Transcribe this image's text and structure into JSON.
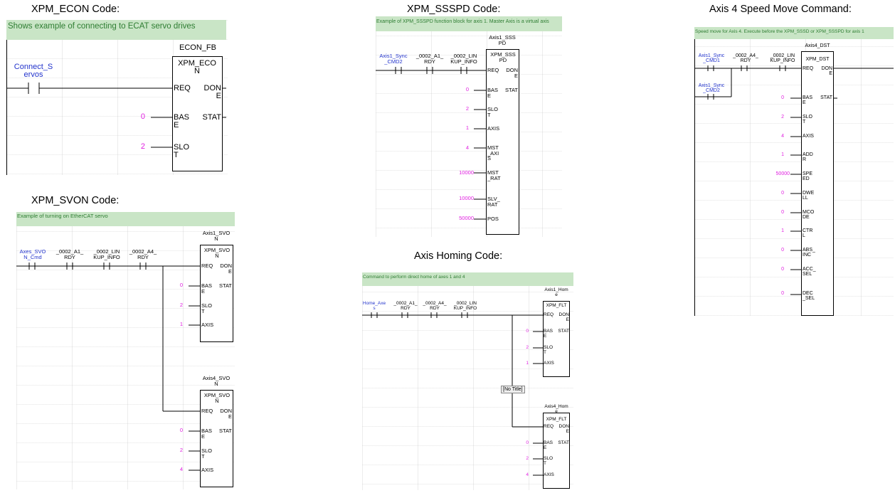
{
  "econ": {
    "title": "XPM_ECON Code:",
    "comment": "Shows example of connecting to ECAT servo drives",
    "contact": "Connect_S\nervos",
    "instance": "ECON_FB",
    "fb_name": "XPM_ECO\nN",
    "pins": {
      "req": "REQ",
      "base": "BAS\nE",
      "slot": "SLO\nT",
      "done": "DON\nE",
      "stat": "STAT"
    },
    "values": {
      "base": "0",
      "slot": "2"
    }
  },
  "svon": {
    "title": "XPM_SVON Code:",
    "comment": "Example of turning on EtherCAT servo",
    "contacts": [
      "Axes_SVO\nN_Cmd",
      "_0002_A1_\nRDY",
      "_0002_LIN\nKUP_INFO",
      "_0002_A4_\nRDY"
    ],
    "block1": {
      "instance": "Axis1_SVO\nN",
      "fb_name": "XPM_SVO\nN",
      "values": {
        "base": "0",
        "slot": "2",
        "axis": "1"
      }
    },
    "block2": {
      "instance": "Axis4_SVO\nN",
      "fb_name": "XPM_SVO\nN",
      "values": {
        "base": "0",
        "slot": "2",
        "axis": "4"
      }
    },
    "pins": {
      "req": "REQ",
      "base": "BAS\nE",
      "slot": "SLO\nT",
      "axis": "AXIS",
      "done": "DON\nE",
      "stat": "STAT"
    }
  },
  "ssspd": {
    "title": "XPM_SSSPD Code:",
    "comment": "Example of XPM_SSSPD function block for axis 1. Master Axis is a virtual axis",
    "contacts": [
      "Axis1_Sync\n_CMD2",
      "_0002_A1_\nRDY",
      "_0002_LIN\nKUP_INFO"
    ],
    "instance": "Axis1_SSS\nPD",
    "fb_name": "XPM_SSS\nPD",
    "pins": {
      "req": "REQ",
      "base": "BAS\nE",
      "slot": "SLO\nT",
      "axis": "AXIS",
      "mst_axis": "MST\n_AXI\nS",
      "mst_rat": "MST\n_RAT",
      "slv_rat": "SLV_\nRAT",
      "pos": "POS",
      "done": "DON\nE",
      "stat": "STAT"
    },
    "values": {
      "base": "0",
      "slot": "2",
      "axis": "1",
      "mst_axis": "4",
      "mst_rat": "10000",
      "slv_rat": "10000",
      "pos": "50000"
    }
  },
  "homing": {
    "title": "Axis Homing Code:",
    "comment": "Command to perform direct home of axes 1 and 4",
    "contacts": [
      "Home_Axe\ns",
      "_0002_A1_\nRDY",
      "_0002_A4_\nRDY",
      "_0002_LIN\nKUP_INFO"
    ],
    "block1": {
      "instance": "Axis1_Hom\ne",
      "fb_name": "XPM_FLT",
      "values": {
        "base": "0",
        "slot": "2",
        "axis": "1"
      }
    },
    "block2": {
      "instance": "Axis4_Hom\ne",
      "fb_name": "XPM_FLT",
      "values": {
        "base": "0",
        "slot": "2",
        "axis": "4"
      }
    },
    "no_title": "[No Title]",
    "pins": {
      "req": "REQ",
      "base": "BAS\nE",
      "slot": "SLO\nT",
      "axis": "AXIS",
      "done": "DON\nE",
      "stat": "STAT"
    }
  },
  "speed": {
    "title": "Axis 4 Speed Move Command:",
    "comment": "Speed move for Axis 4.  Execute before the XPM_SSSD or XPM_SSSPD for axis 1",
    "contacts": [
      "Axis1_Sync\n_CMD1",
      "_0002_A4_\nRDY",
      "_0002_LIN\nKUP_INFO",
      "Axis1_Sync\n_CMD2"
    ],
    "instance": "Axis4_DST",
    "fb_name": "XPM_DST",
    "pins": {
      "req": "REQ",
      "base": "BAS\nE",
      "slot": "SLO\nT",
      "axis": "AXIS",
      "addr": "ADD\nR",
      "speed": "SPE\nED",
      "dwell": "DWE\nLL",
      "mcode": "MCO\nDE",
      "ctrl": "CTR\nL",
      "abs_inc": "ABS_\nINC",
      "acc_sel": "ACC_\nSEL",
      "dec_sel": "DEC\n_SEL",
      "done": "DON\nE",
      "stat": "STAT"
    },
    "values": {
      "base": "0",
      "slot": "2",
      "axis": "4",
      "addr": "1",
      "speed": "50000",
      "dwell": "0",
      "mcode": "0",
      "ctrl": "1",
      "abs_inc": "0",
      "acc_sel": "0",
      "dec_sel": "0"
    }
  }
}
